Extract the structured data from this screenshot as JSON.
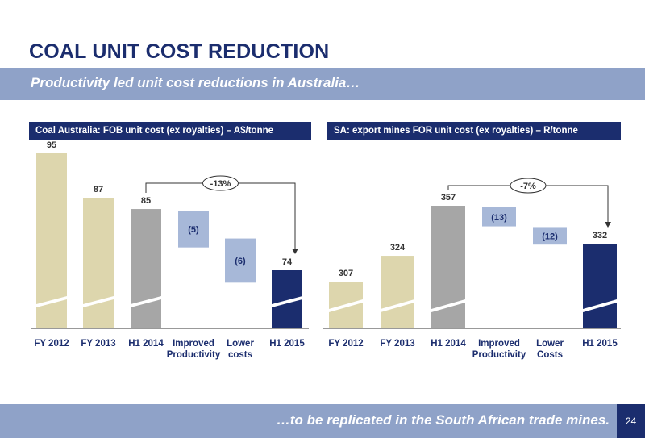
{
  "title": "COAL UNIT COST REDUCTION",
  "subtitle": "Productivity led unit cost reductions in Australia…",
  "footer": "…to be replicated in the South African trade mines.",
  "page_number": "24",
  "colors": {
    "navy": "#1b2d6e",
    "beige": "#ddd6ad",
    "grey": "#a6a6a6",
    "step_blue": "#a7b8d8",
    "banner": "#8fa2c8"
  },
  "chart_data": [
    {
      "type": "bar",
      "subtype": "waterfall",
      "title": "Coal Australia: FOB unit cost (ex royalties) – A$/tonne",
      "categories": [
        "FY 2012",
        "FY 2013",
        "H1 2014",
        "Improved Productivity",
        "Lower costs",
        "H1 2015"
      ],
      "category_lines": [
        [
          "FY 2012"
        ],
        [
          "FY 2013"
        ],
        [
          "H1 2014"
        ],
        [
          "Improved",
          "Productivity"
        ],
        [
          "Lower",
          "costs"
        ],
        [
          "H1 2015"
        ]
      ],
      "values": [
        95,
        87,
        85,
        -5,
        -6,
        74
      ],
      "labels": [
        "95",
        "87",
        "85",
        "(5)",
        "(6)",
        "74"
      ],
      "kinds": [
        "beige",
        "beige",
        "grey",
        "step",
        "step",
        "navy"
      ],
      "annotation": {
        "text": "-13%",
        "from_index": 2,
        "to_index": 5
      },
      "ylim": [
        0,
        100
      ],
      "axis_break": true
    },
    {
      "type": "bar",
      "subtype": "waterfall",
      "title": "SA: export mines FOR unit cost (ex royalties) – R/tonne",
      "categories": [
        "FY 2012",
        "FY 2013",
        "H1 2014",
        "Improved Productivity",
        "Lower Costs",
        "H1 2015"
      ],
      "category_lines": [
        [
          "FY 2012"
        ],
        [
          "FY 2013"
        ],
        [
          "H1 2014"
        ],
        [
          "Improved",
          "Productivity"
        ],
        [
          "Lower",
          "Costs"
        ],
        [
          "H1 2015"
        ]
      ],
      "values": [
        307,
        324,
        357,
        -13,
        -12,
        332
      ],
      "labels": [
        "307",
        "324",
        "357",
        "(13)",
        "(12)",
        "332"
      ],
      "kinds": [
        "beige",
        "beige",
        "grey",
        "step",
        "step",
        "navy"
      ],
      "annotation": {
        "text": "-7%",
        "from_index": 2,
        "to_index": 5
      },
      "axis_break": true
    }
  ]
}
